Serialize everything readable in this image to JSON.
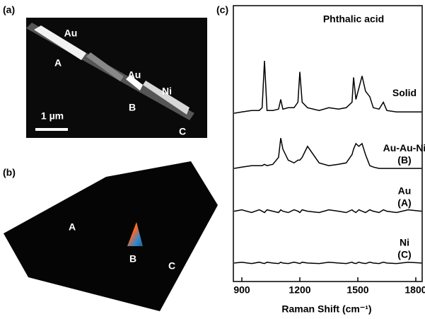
{
  "panel_a": {
    "label": "(a)",
    "texts": [
      "Au",
      "A",
      "Au",
      "B",
      "Ni",
      "1 µm",
      "C"
    ]
  },
  "panel_b": {
    "label": "(b)",
    "texts": [
      "A",
      "B",
      "C"
    ]
  },
  "chart_data": {
    "type": "line",
    "panel_label": "(c)",
    "title": "Phthalic acid",
    "x_label": "Raman Shift (cm⁻¹)",
    "xlim": [
      856,
      1833
    ],
    "xticks": [
      900,
      1200,
      1500,
      1800
    ],
    "ylim": [
      0,
      100
    ],
    "x": [
      860,
      900,
      950,
      990,
      1005,
      1017,
      1030,
      1060,
      1090,
      1101,
      1112,
      1140,
      1170,
      1190,
      1200,
      1212,
      1240,
      1300,
      1350,
      1400,
      1440,
      1470,
      1478,
      1490,
      1505,
      1522,
      1540,
      1562,
      1580,
      1610,
      1632,
      1650,
      1700,
      1760,
      1830
    ],
    "series": [
      {
        "name": "Solid",
        "color": "#000000",
        "values": [
          61,
          61.5,
          62,
          62,
          63,
          80,
          62,
          62,
          62.5,
          66,
          62.5,
          63,
          63,
          65,
          76,
          65,
          63,
          62,
          63,
          62.5,
          63,
          65,
          74,
          66,
          70,
          74.5,
          69,
          67,
          63,
          62.5,
          65,
          62,
          61.5,
          61.5,
          61.5
        ]
      },
      {
        "name": "Au-Au-Ni",
        "sublabel": "(B)",
        "color": "#000000",
        "values": [
          41,
          41.5,
          42,
          42,
          42,
          42.5,
          42,
          42.5,
          45,
          52,
          48,
          44,
          43,
          44,
          44,
          45,
          49,
          43,
          42,
          42.5,
          43,
          46,
          48,
          50,
          49,
          50,
          46,
          42,
          41.5,
          41,
          41,
          41,
          41,
          41,
          41
        ]
      },
      {
        "name": "Au",
        "sublabel": "(A)",
        "color": "#000000",
        "values": [
          25.5,
          26,
          25,
          26,
          25.5,
          25,
          26,
          25.5,
          25,
          26,
          25.5,
          25,
          26,
          25.5,
          25,
          26,
          25.5,
          25,
          26,
          25.5,
          25,
          26,
          25.5,
          25,
          26,
          25.5,
          25,
          26,
          25.5,
          25,
          26,
          25.5,
          25,
          26,
          25.5
        ]
      },
      {
        "name": "Ni",
        "sublabel": "(C)",
        "color": "#000000",
        "values": [
          6.7,
          7,
          6.5,
          7,
          6.7,
          6.5,
          7,
          6.7,
          6.5,
          7,
          6.7,
          6.5,
          7,
          6.7,
          6.5,
          7,
          6.7,
          6.5,
          7,
          6.7,
          6.5,
          7,
          6.7,
          6.5,
          7,
          6.7,
          6.5,
          7,
          6.7,
          6.5,
          7,
          6.7,
          6.5,
          7,
          6.7
        ]
      }
    ]
  }
}
